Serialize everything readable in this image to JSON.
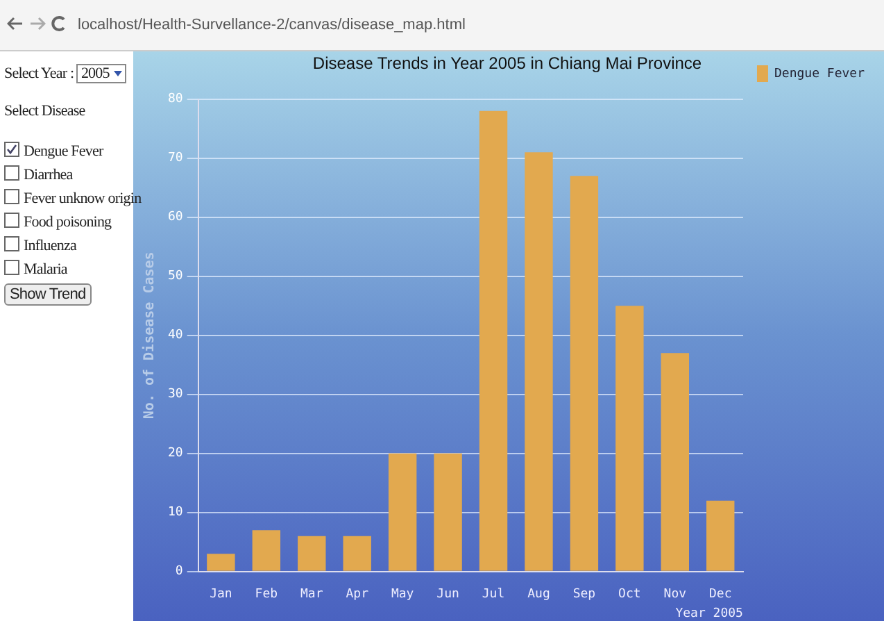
{
  "chart_data": {
    "type": "bar",
    "title": "Disease Trends in Year 2005 in Chiang Mai Province",
    "xlabel": "Year 2005",
    "ylabel": "No. of Disease Cases",
    "categories": [
      "Jan",
      "Feb",
      "Mar",
      "Apr",
      "May",
      "Jun",
      "Jul",
      "Aug",
      "Sep",
      "Oct",
      "Nov",
      "Dec"
    ],
    "series": [
      {
        "name": "Dengue Fever",
        "color": "#e2a94f",
        "values": [
          3,
          7,
          6,
          6,
          20,
          20,
          78,
          71,
          67,
          45,
          37,
          12
        ]
      }
    ],
    "ylim": [
      0,
      80
    ],
    "yticks": [
      0,
      10,
      20,
      30,
      40,
      50,
      60,
      70,
      80
    ],
    "grid": "y",
    "legend": "top right",
    "annotations": [
      "localhost/Health-Survellance-2/canvas/disease_map.html",
      "Select Year :",
      "2005",
      "Select Disease",
      "Dengue Fever",
      "Diarrhea",
      "Fever unknow origin",
      "Food poisoning",
      "Influenza",
      "Malaria",
      "Show Trend"
    ]
  }
}
